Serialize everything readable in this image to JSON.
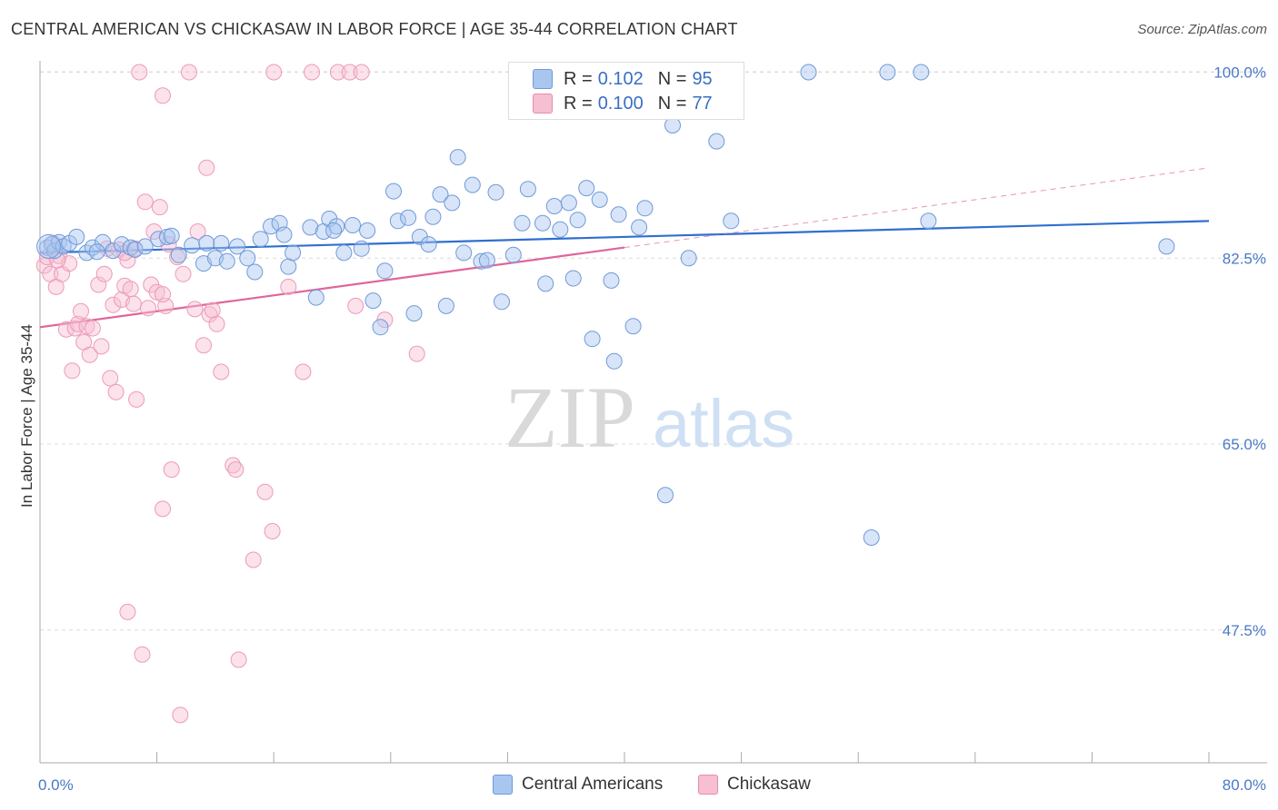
{
  "title": "CENTRAL AMERICAN VS CHICKASAW IN LABOR FORCE | AGE 35-44 CORRELATION CHART",
  "source": "Source: ZipAtlas.com",
  "watermark": {
    "part1": "ZIP",
    "part2": "atlas"
  },
  "legend": {
    "rows": [
      {
        "r_label": "R =",
        "r_value": "0.102",
        "n_label": "N =",
        "n_value": "95",
        "color": "#a9c6ef",
        "border": "#6f9ad9"
      },
      {
        "r_label": "R =",
        "r_value": "0.100",
        "n_label": "N =",
        "n_value": "77",
        "color": "#f7bfd2",
        "border": "#e88aaa"
      }
    ]
  },
  "bottom_legend": [
    {
      "label": "Central Americans",
      "color": "#a9c6ef",
      "border": "#6f9ad9"
    },
    {
      "label": "Chickasaw",
      "color": "#f7bfd2",
      "border": "#e88aaa"
    }
  ],
  "chart_data": {
    "type": "scatter",
    "title": "CENTRAL AMERICAN VS CHICKASAW IN LABOR FORCE | AGE 35-44 CORRELATION CHART",
    "xlabel": "",
    "ylabel": "In Labor Force | Age 35-44",
    "xlim": [
      0,
      80
    ],
    "ylim": [
      35,
      101.5
    ],
    "x_tick_labels": [
      "0.0%",
      "80.0%"
    ],
    "y_ticks": [
      47.5,
      65.0,
      82.5,
      100.0
    ],
    "y_tick_labels": [
      "47.5%",
      "65.0%",
      "82.5%",
      "100.0%"
    ],
    "grid": true,
    "series": [
      {
        "name": "Central Americans",
        "color": "#7ba6e3",
        "line_color": "#2f6fcf",
        "trend": {
          "x": [
            0,
            80
          ],
          "y": [
            83.0,
            86.0
          ]
        },
        "points": [
          [
            0.5,
            83.5
          ],
          [
            0.8,
            83.8
          ],
          [
            1.0,
            83.2
          ],
          [
            1.3,
            84.0
          ],
          [
            1.6,
            83.6
          ],
          [
            2.0,
            83.9
          ],
          [
            2.5,
            84.5
          ],
          [
            3.2,
            83.0
          ],
          [
            3.6,
            83.5
          ],
          [
            4.3,
            84.0
          ],
          [
            5.0,
            83.2
          ],
          [
            5.6,
            83.8
          ],
          [
            6.2,
            83.5
          ],
          [
            6.5,
            83.3
          ],
          [
            7.2,
            83.6
          ],
          [
            8.1,
            84.3
          ],
          [
            8.7,
            84.5
          ],
          [
            9.5,
            82.8
          ],
          [
            10.4,
            83.7
          ],
          [
            11.2,
            82.0
          ],
          [
            11.4,
            83.9
          ],
          [
            12.0,
            82.5
          ],
          [
            12.8,
            82.2
          ],
          [
            13.5,
            83.6
          ],
          [
            14.2,
            82.5
          ],
          [
            14.7,
            81.2
          ],
          [
            15.1,
            84.3
          ],
          [
            15.8,
            85.5
          ],
          [
            16.4,
            85.8
          ],
          [
            17.0,
            81.7
          ],
          [
            17.3,
            83.0
          ],
          [
            18.5,
            85.4
          ],
          [
            18.9,
            78.8
          ],
          [
            19.4,
            85.0
          ],
          [
            19.8,
            86.2
          ],
          [
            20.3,
            85.5
          ],
          [
            20.8,
            83.0
          ],
          [
            21.4,
            85.6
          ],
          [
            22.0,
            83.4
          ],
          [
            22.4,
            85.1
          ],
          [
            22.8,
            78.5
          ],
          [
            23.3,
            76.0
          ],
          [
            23.6,
            81.3
          ],
          [
            24.2,
            88.8
          ],
          [
            24.5,
            86.0
          ],
          [
            25.2,
            86.3
          ],
          [
            25.6,
            77.3
          ],
          [
            26.0,
            84.5
          ],
          [
            26.6,
            83.8
          ],
          [
            26.9,
            86.4
          ],
          [
            27.4,
            88.5
          ],
          [
            27.8,
            78.0
          ],
          [
            28.2,
            87.7
          ],
          [
            28.6,
            92.0
          ],
          [
            29.0,
            83.0
          ],
          [
            29.6,
            89.4
          ],
          [
            30.2,
            82.2
          ],
          [
            30.6,
            82.3
          ],
          [
            31.2,
            88.7
          ],
          [
            31.6,
            78.4
          ],
          [
            32.4,
            82.8
          ],
          [
            33.0,
            85.8
          ],
          [
            33.4,
            89.0
          ],
          [
            34.4,
            85.8
          ],
          [
            34.6,
            80.1
          ],
          [
            35.2,
            87.4
          ],
          [
            35.6,
            85.2
          ],
          [
            36.2,
            87.7
          ],
          [
            36.5,
            80.6
          ],
          [
            36.8,
            86.1
          ],
          [
            37.4,
            89.1
          ],
          [
            37.8,
            74.9
          ],
          [
            38.3,
            88.0
          ],
          [
            39.1,
            80.4
          ],
          [
            39.3,
            72.8
          ],
          [
            39.6,
            86.6
          ],
          [
            40.6,
            76.1
          ],
          [
            41.0,
            85.4
          ],
          [
            41.4,
            87.2
          ],
          [
            42.8,
            60.2
          ],
          [
            43.3,
            95.0
          ],
          [
            44.4,
            82.5
          ],
          [
            46.3,
            93.5
          ],
          [
            47.3,
            86.0
          ],
          [
            52.6,
            100.0
          ],
          [
            56.9,
            56.2
          ],
          [
            58.0,
            100.0
          ],
          [
            60.3,
            100.0
          ],
          [
            60.8,
            86.0
          ],
          [
            77.1,
            83.6
          ],
          [
            3.9,
            83.1
          ],
          [
            9.0,
            84.6
          ],
          [
            12.4,
            83.9
          ],
          [
            16.7,
            84.7
          ],
          [
            20.1,
            85.1
          ]
        ]
      },
      {
        "name": "Chickasaw",
        "color": "#f4a9c2",
        "line_color": "#e0659a",
        "trend": {
          "x": [
            0,
            40
          ],
          "y": [
            76.0,
            83.5
          ]
        },
        "trend_extension": {
          "x": [
            40,
            80
          ],
          "y": [
            83.5,
            91.0
          ]
        },
        "points": [
          [
            0.3,
            81.8
          ],
          [
            0.5,
            82.6
          ],
          [
            0.7,
            81.0
          ],
          [
            0.9,
            83.9
          ],
          [
            1.1,
            79.8
          ],
          [
            1.3,
            82.7
          ],
          [
            1.5,
            81.0
          ],
          [
            1.8,
            75.8
          ],
          [
            2.0,
            82.0
          ],
          [
            2.2,
            71.9
          ],
          [
            2.4,
            75.9
          ],
          [
            2.6,
            76.3
          ],
          [
            2.8,
            77.5
          ],
          [
            3.0,
            74.6
          ],
          [
            3.2,
            76.1
          ],
          [
            3.4,
            73.4
          ],
          [
            3.6,
            75.9
          ],
          [
            4.0,
            80.0
          ],
          [
            4.2,
            74.2
          ],
          [
            4.4,
            81.0
          ],
          [
            4.6,
            83.4
          ],
          [
            4.8,
            71.2
          ],
          [
            5.0,
            78.1
          ],
          [
            5.2,
            69.9
          ],
          [
            5.4,
            83.3
          ],
          [
            5.6,
            78.6
          ],
          [
            5.8,
            79.9
          ],
          [
            6.0,
            82.3
          ],
          [
            6.2,
            79.6
          ],
          [
            6.4,
            78.2
          ],
          [
            6.6,
            69.2
          ],
          [
            6.8,
            100.0
          ],
          [
            7.0,
            45.2
          ],
          [
            7.2,
            87.8
          ],
          [
            7.4,
            77.8
          ],
          [
            7.6,
            80.0
          ],
          [
            7.8,
            85.0
          ],
          [
            8.0,
            79.3
          ],
          [
            8.2,
            87.3
          ],
          [
            8.4,
            97.8
          ],
          [
            8.6,
            78.0
          ],
          [
            8.8,
            83.8
          ],
          [
            9.0,
            62.6
          ],
          [
            9.4,
            82.6
          ],
          [
            9.6,
            39.5
          ],
          [
            9.8,
            81.0
          ],
          [
            10.2,
            100.0
          ],
          [
            10.6,
            77.7
          ],
          [
            10.8,
            85.0
          ],
          [
            11.2,
            74.3
          ],
          [
            11.4,
            91.0
          ],
          [
            11.6,
            77.2
          ],
          [
            11.8,
            77.6
          ],
          [
            12.4,
            71.8
          ],
          [
            13.2,
            63.0
          ],
          [
            13.4,
            62.6
          ],
          [
            13.6,
            44.7
          ],
          [
            14.6,
            54.1
          ],
          [
            15.4,
            60.5
          ],
          [
            15.9,
            56.8
          ],
          [
            16.0,
            100.0
          ],
          [
            17.0,
            79.8
          ],
          [
            18.0,
            71.8
          ],
          [
            18.6,
            100.0
          ],
          [
            20.4,
            100.0
          ],
          [
            21.2,
            100.0
          ],
          [
            21.6,
            78.0
          ],
          [
            22.0,
            100.0
          ],
          [
            23.6,
            76.7
          ],
          [
            25.8,
            73.5
          ],
          [
            5.8,
            83.0
          ],
          [
            6.5,
            83.4
          ],
          [
            1.2,
            82.3
          ],
          [
            8.4,
            79.1
          ],
          [
            12.1,
            76.3
          ],
          [
            6.0,
            49.2
          ],
          [
            8.4,
            58.9
          ]
        ]
      }
    ]
  }
}
